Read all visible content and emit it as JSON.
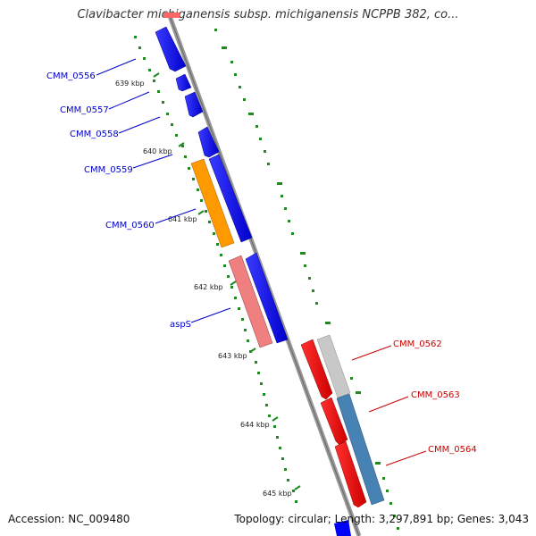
{
  "title": "Clavibacter michiganensis subsp. michiganensis NCPPB 382, co...",
  "footer": {
    "accession": "Accession: NC_009480",
    "summary": "Topology: circular; Length: 3,297,891 bp; Genes: 3,043"
  },
  "colors": {
    "backbone": "#888888",
    "tick": "#1f8a1f",
    "forward_label": "#0000cc",
    "reverse_label": "#cc0000",
    "blue_gene": "#0000ff",
    "orange_gene": "#ff9900",
    "pink_gene": "#f08080",
    "red_gene": "#ff0000",
    "grey_gene": "#c8c8c8",
    "steel_gene": "#4682b4"
  },
  "ticks": [
    "639 kbp",
    "640 kbp",
    "641 kbp",
    "642 kbp",
    "643 kbp",
    "644 kbp",
    "645 kbp"
  ],
  "gene_labels": [
    {
      "id": "CMM_0556",
      "strand": "forward"
    },
    {
      "id": "CMM_0557",
      "strand": "forward"
    },
    {
      "id": "CMM_0558",
      "strand": "forward"
    },
    {
      "id": "CMM_0559",
      "strand": "forward"
    },
    {
      "id": "CMM_0560",
      "strand": "forward"
    },
    {
      "id": "aspS",
      "strand": "forward"
    },
    {
      "id": "CMM_0562",
      "strand": "reverse"
    },
    {
      "id": "CMM_0563",
      "strand": "reverse"
    },
    {
      "id": "CMM_0564",
      "strand": "reverse"
    }
  ]
}
